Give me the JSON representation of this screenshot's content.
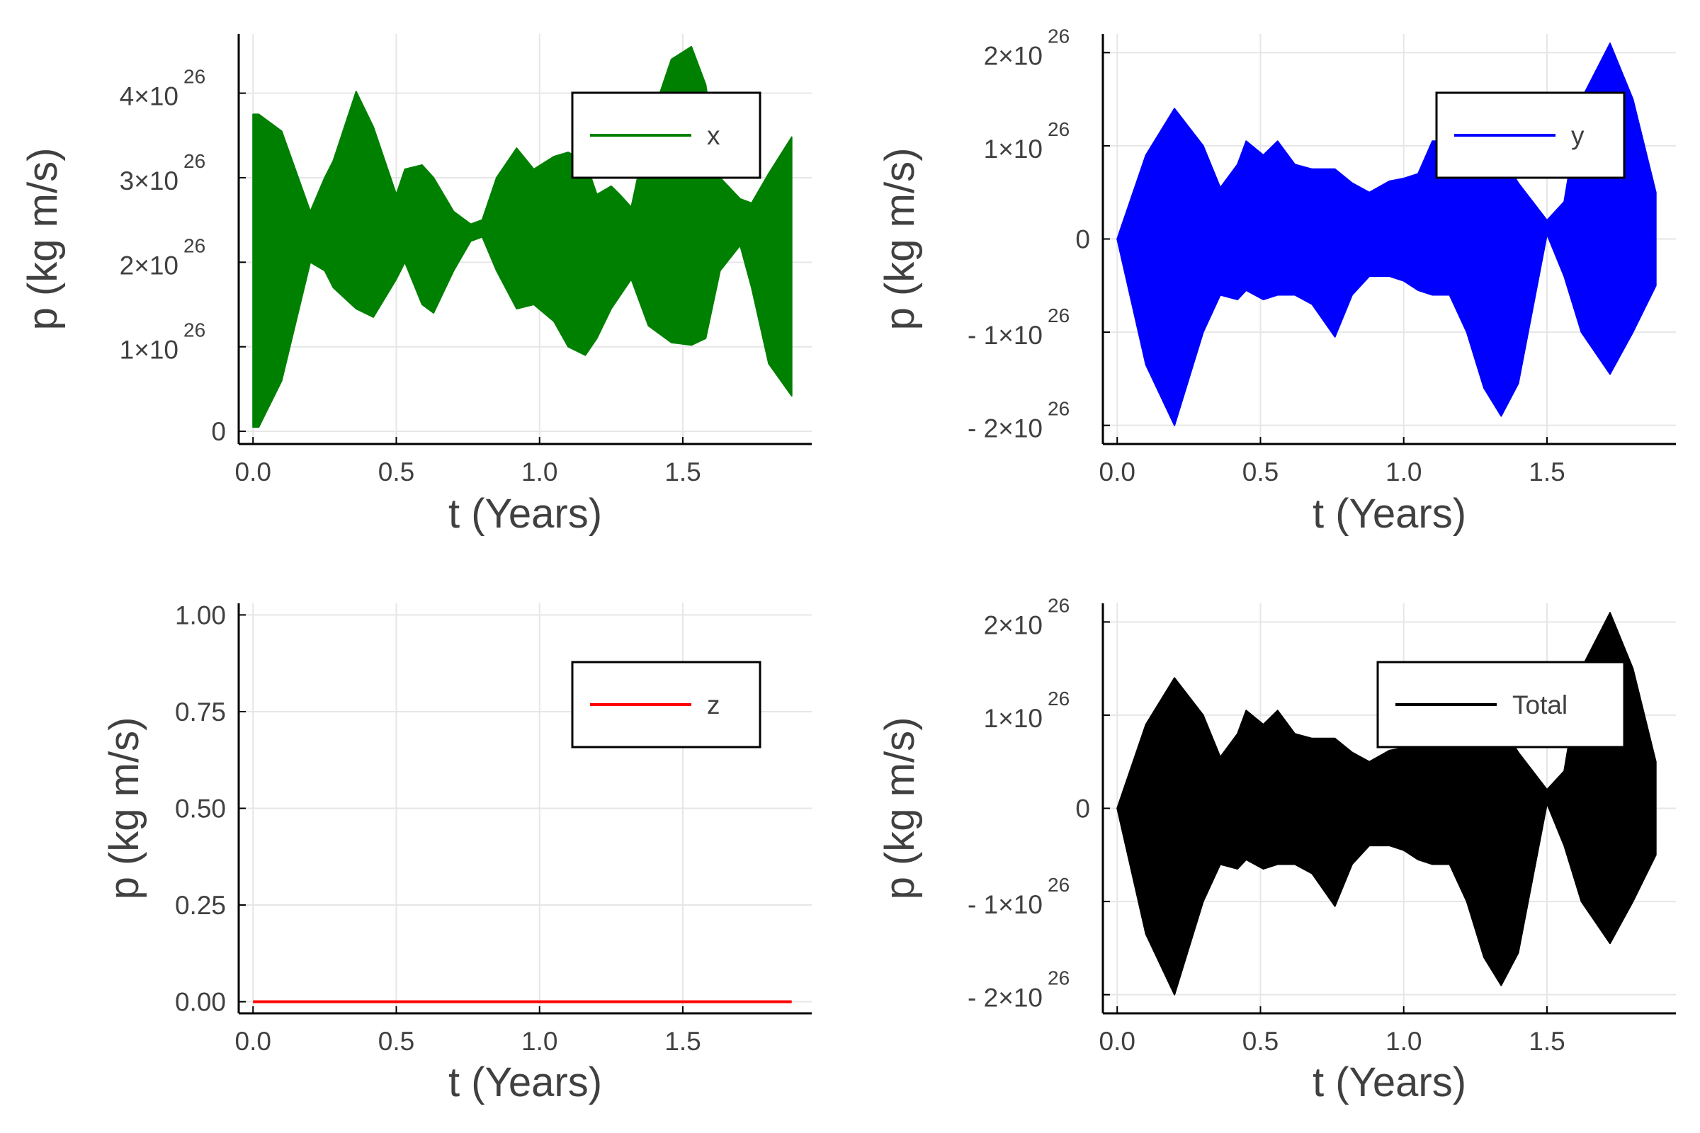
{
  "chart_data": [
    {
      "type": "area",
      "xlabel": "t (Years)",
      "ylabel": "p (kg m/s)",
      "xlim": [
        -0.05,
        1.95
      ],
      "ylim": [
        -1.5e+25,
        4.7e+26
      ],
      "xticks": [
        {
          "v": 0.0,
          "label": "0.0"
        },
        {
          "v": 0.5,
          "label": "0.5"
        },
        {
          "v": 1.0,
          "label": "1.0"
        },
        {
          "v": 1.5,
          "label": "1.5"
        }
      ],
      "yticks": [
        {
          "v": 0,
          "label": "0",
          "exp": ""
        },
        {
          "v": 1e+26,
          "label": "1×10",
          "exp": "26"
        },
        {
          "v": 2e+26,
          "label": "2×10",
          "exp": "26"
        },
        {
          "v": 3e+26,
          "label": "3×10",
          "exp": "26"
        },
        {
          "v": 4e+26,
          "label": "4×10",
          "exp": "26"
        }
      ],
      "grid": true,
      "legend_position": "top-right",
      "series": [
        {
          "name": "x",
          "color": "#008000",
          "x": [
            0.0,
            0.02,
            0.1,
            0.2,
            0.25,
            0.28,
            0.36,
            0.42,
            0.5,
            0.53,
            0.59,
            0.63,
            0.7,
            0.76,
            0.8,
            0.85,
            0.92,
            0.98,
            1.05,
            1.1,
            1.16,
            1.2,
            1.25,
            1.28,
            1.32,
            1.38,
            1.46,
            1.53,
            1.58,
            1.63,
            1.7,
            1.74,
            1.8,
            1.88
          ],
          "upper": [
            3.75e+26,
            3.75e+26,
            3.55e+26,
            2.6e+26,
            3e+26,
            3.2e+26,
            4.02e+26,
            3.6e+26,
            2.8e+26,
            3.1e+26,
            3.15e+26,
            3e+26,
            2.6e+26,
            2.45e+26,
            2.5e+26,
            3e+26,
            3.35e+26,
            3.1e+26,
            3.25e+26,
            3.3e+26,
            3.2e+26,
            2.8e+26,
            2.9e+26,
            2.8e+26,
            2.65e+26,
            3.6e+26,
            4.4e+26,
            4.55e+26,
            4.1e+26,
            3e+26,
            2.75e+26,
            2.7e+26,
            3.05e+26,
            3.48e+26
          ],
          "lower": [
            5e+24,
            5e+24,
            6e+25,
            2e+26,
            1.9e+26,
            1.7e+26,
            1.45e+26,
            1.35e+26,
            1.8e+26,
            2e+26,
            1.5e+26,
            1.4e+26,
            1.9e+26,
            2.25e+26,
            2.3e+26,
            1.9e+26,
            1.45e+26,
            1.5e+26,
            1.3e+26,
            1e+26,
            9e+25,
            1.1e+26,
            1.45e+26,
            1.6e+26,
            1.8e+26,
            1.25e+26,
            1.05e+26,
            1.02e+26,
            1.1e+26,
            1.9e+26,
            2.2e+26,
            1.7e+26,
            8e+25,
            4.2e+25
          ]
        }
      ]
    },
    {
      "type": "area",
      "xlabel": "t (Years)",
      "ylabel": "p (kg m/s)",
      "xlim": [
        -0.05,
        1.95
      ],
      "ylim": [
        -2.2e+26,
        2.2e+26
      ],
      "xticks": [
        {
          "v": 0.0,
          "label": "0.0"
        },
        {
          "v": 0.5,
          "label": "0.5"
        },
        {
          "v": 1.0,
          "label": "1.0"
        },
        {
          "v": 1.5,
          "label": "1.5"
        }
      ],
      "yticks": [
        {
          "v": -2e+26,
          "label": "- 2×10",
          "exp": "26"
        },
        {
          "v": -1e+26,
          "label": "- 1×10",
          "exp": "26"
        },
        {
          "v": 0,
          "label": "0",
          "exp": ""
        },
        {
          "v": 1e+26,
          "label": "1×10",
          "exp": "26"
        },
        {
          "v": 2e+26,
          "label": "2×10",
          "exp": "26"
        }
      ],
      "grid": true,
      "legend_position": "top-right",
      "series": [
        {
          "name": "y",
          "color": "#0000ff",
          "x": [
            0.0,
            0.1,
            0.2,
            0.3,
            0.36,
            0.42,
            0.45,
            0.51,
            0.56,
            0.62,
            0.68,
            0.76,
            0.82,
            0.88,
            0.95,
            1.0,
            1.05,
            1.1,
            1.16,
            1.22,
            1.28,
            1.34,
            1.4,
            1.5,
            1.56,
            1.62,
            1.72,
            1.8,
            1.88
          ],
          "upper": [
            0.0,
            9e+25,
            1.4e+26,
            1e+26,
            5.5e+25,
            8e+25,
            1.05e+26,
            9e+25,
            1.05e+26,
            8e+25,
            7.5e+25,
            7.5e+25,
            6e+25,
            5e+25,
            6.2e+25,
            6.5e+25,
            7e+25,
            1.05e+26,
            1.05e+26,
            8.5e+25,
            9e+25,
            9e+25,
            6e+25,
            2e+25,
            4e+25,
            1.5e+26,
            2.1e+26,
            1.5e+26,
            5e+25
          ],
          "lower": [
            0.0,
            -1.35e+26,
            -2e+26,
            -1e+26,
            -6e+25,
            -6.5e+25,
            -5.5e+25,
            -6.5e+25,
            -6e+25,
            -6e+25,
            -7e+25,
            -1.05e+26,
            -6e+25,
            -4e+25,
            -4e+25,
            -4.5e+25,
            -5.5e+25,
            -6e+25,
            -6e+25,
            -1e+26,
            -1.6e+26,
            -1.9e+26,
            -1.55e+26,
            5e+24,
            -4e+25,
            -1e+26,
            -1.45e+26,
            -1e+26,
            -5e+25
          ]
        }
      ]
    },
    {
      "type": "line",
      "xlabel": "t (Years)",
      "ylabel": "p (kg m/s)",
      "xlim": [
        -0.05,
        1.95
      ],
      "ylim": [
        -0.03,
        1.03
      ],
      "xticks": [
        {
          "v": 0.0,
          "label": "0.0"
        },
        {
          "v": 0.5,
          "label": "0.5"
        },
        {
          "v": 1.0,
          "label": "1.0"
        },
        {
          "v": 1.5,
          "label": "1.5"
        }
      ],
      "yticks": [
        {
          "v": 0.0,
          "label": "0.00",
          "exp": ""
        },
        {
          "v": 0.25,
          "label": "0.25",
          "exp": ""
        },
        {
          "v": 0.5,
          "label": "0.50",
          "exp": ""
        },
        {
          "v": 0.75,
          "label": "0.75",
          "exp": ""
        },
        {
          "v": 1.0,
          "label": "1.00",
          "exp": ""
        }
      ],
      "grid": true,
      "legend_position": "top-right",
      "series": [
        {
          "name": "z",
          "color": "#ff0000",
          "x": [
            0.0,
            1.88
          ],
          "y": [
            0.0,
            0.0
          ]
        }
      ]
    },
    {
      "type": "area",
      "xlabel": "t (Years)",
      "ylabel": "p (kg m/s)",
      "xlim": [
        -0.05,
        1.95
      ],
      "ylim": [
        -2.2e+26,
        2.2e+26
      ],
      "xticks": [
        {
          "v": 0.0,
          "label": "0.0"
        },
        {
          "v": 0.5,
          "label": "0.5"
        },
        {
          "v": 1.0,
          "label": "1.0"
        },
        {
          "v": 1.5,
          "label": "1.5"
        }
      ],
      "yticks": [
        {
          "v": -2e+26,
          "label": "- 2×10",
          "exp": "26"
        },
        {
          "v": -1e+26,
          "label": "- 1×10",
          "exp": "26"
        },
        {
          "v": 0,
          "label": "0",
          "exp": ""
        },
        {
          "v": 1e+26,
          "label": "1×10",
          "exp": "26"
        },
        {
          "v": 2e+26,
          "label": "2×10",
          "exp": "26"
        }
      ],
      "grid": true,
      "legend_position": "top-right",
      "series": [
        {
          "name": "Total",
          "color": "#000000",
          "x": [
            0.0,
            0.1,
            0.2,
            0.3,
            0.36,
            0.42,
            0.45,
            0.51,
            0.56,
            0.62,
            0.68,
            0.76,
            0.82,
            0.88,
            0.95,
            1.0,
            1.05,
            1.1,
            1.16,
            1.22,
            1.28,
            1.34,
            1.4,
            1.5,
            1.56,
            1.62,
            1.72,
            1.8,
            1.88
          ],
          "upper": [
            0.0,
            9e+25,
            1.4e+26,
            1e+26,
            5.5e+25,
            8e+25,
            1.05e+26,
            9e+25,
            1.05e+26,
            8e+25,
            7.5e+25,
            7.5e+25,
            6e+25,
            5e+25,
            6.2e+25,
            6.5e+25,
            7e+25,
            1.05e+26,
            1.05e+26,
            8.5e+25,
            9e+25,
            9e+25,
            6e+25,
            2e+25,
            4e+25,
            1.5e+26,
            2.1e+26,
            1.5e+26,
            5e+25
          ],
          "lower": [
            0.0,
            -1.35e+26,
            -2e+26,
            -1e+26,
            -6e+25,
            -6.5e+25,
            -5.5e+25,
            -6.5e+25,
            -6e+25,
            -6e+25,
            -7e+25,
            -1.05e+26,
            -6e+25,
            -4e+25,
            -4e+25,
            -4.5e+25,
            -5.5e+25,
            -6e+25,
            -6e+25,
            -1e+26,
            -1.6e+26,
            -1.9e+26,
            -1.55e+26,
            5e+24,
            -4e+25,
            -1e+26,
            -1.45e+26,
            -1e+26,
            -5e+25
          ]
        }
      ]
    }
  ]
}
